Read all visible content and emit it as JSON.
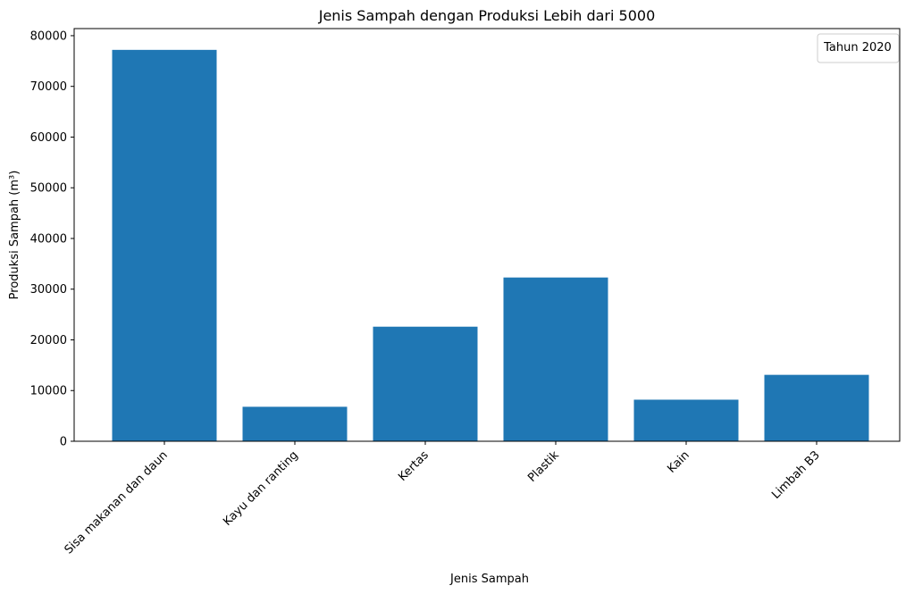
{
  "chart_data": {
    "type": "bar",
    "title": "Jenis Sampah dengan Produksi Lebih dari 5000",
    "xlabel": "Jenis Sampah",
    "ylabel": "Produksi Sampah (m³)",
    "categories": [
      "Sisa  makanan dan daun",
      "Kayu  dan ranting",
      "Kertas",
      "Plastik",
      "Kain",
      "Limbah  B3"
    ],
    "values": [
      77200,
      6800,
      22600,
      32300,
      8200,
      13100
    ],
    "ylim": [
      0,
      81400
    ],
    "yticks": [
      0,
      10000,
      20000,
      30000,
      40000,
      50000,
      60000,
      70000,
      80000
    ],
    "bar_color": "#1f77b4",
    "grid": false,
    "legend": {
      "title": "Tahun 2020",
      "placement": "top-right",
      "entries": []
    }
  }
}
